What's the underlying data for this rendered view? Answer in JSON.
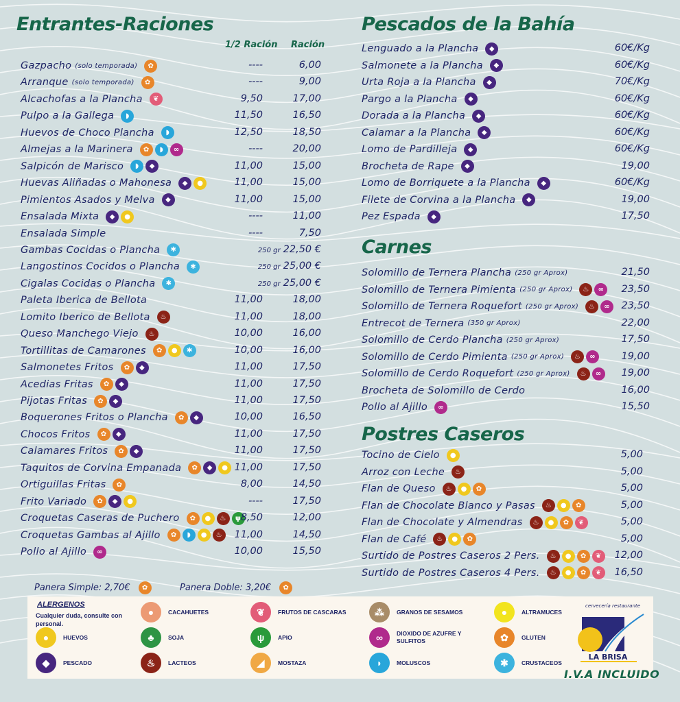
{
  "colors": {
    "text": "#1f2566",
    "title": "#17664a",
    "background": "#d3dfe0"
  },
  "allergen_icons": {
    "gluten": {
      "color": "#e8862a",
      "glyph": "✿",
      "label": "GLUTEN"
    },
    "pescado": {
      "color": "#47267f",
      "glyph": "◆",
      "label": "PESCADO"
    },
    "moluscos": {
      "color": "#28a6da",
      "glyph": "◗",
      "label": "MOLUSCOS"
    },
    "crustaceos": {
      "color": "#3cb3de",
      "glyph": "✱",
      "label": "CRUSTACEOS"
    },
    "sulfitos": {
      "color": "#b02a8c",
      "glyph": "∞",
      "label": "DIOXIDO DE AZUFRE Y SULFITOS"
    },
    "huevos": {
      "color": "#f0c81e",
      "glyph": "●",
      "label": "HUEVOS"
    },
    "lacteos": {
      "color": "#8b2317",
      "glyph": "♨",
      "label": "LACTEOS"
    },
    "frutos": {
      "color": "#e25c78",
      "glyph": "❦",
      "label": "FRUTOS DE CASCARAS"
    },
    "apio": {
      "color": "#2a9a3a",
      "glyph": "ψ",
      "label": "APIO"
    },
    "cacahuetes": {
      "color": "#ec9a74",
      "glyph": "●",
      "label": "CACAHUETES"
    },
    "soja": {
      "color": "#2e9444",
      "glyph": "♣",
      "label": "SOJA"
    },
    "mostaza": {
      "color": "#f0a844",
      "glyph": "◢",
      "label": "MOSTAZA"
    },
    "sesamo": {
      "color": "#a88c68",
      "glyph": "⁂",
      "label": "GRANOS DE SESAMOS"
    },
    "altramuces": {
      "color": "#f2e41e",
      "glyph": "●",
      "label": "ALTRAMUCES"
    }
  },
  "entrantes": {
    "title": "Entrantes-Raciones",
    "col_half": "1/2 Ración",
    "col_full": "Ración",
    "items": [
      {
        "name": "Gazpacho",
        "note": "(solo temporada)",
        "icons": [
          "gluten"
        ],
        "half": "----",
        "price": "6,00"
      },
      {
        "name": "Arranque",
        "note": "(solo temporada)",
        "icons": [
          "gluten"
        ],
        "half": "----",
        "price": "9,00"
      },
      {
        "name": "Alcachofas a la Plancha",
        "icons": [
          "frutos"
        ],
        "half": "9,50",
        "price": "17,00"
      },
      {
        "name": "Pulpo a la Gallega",
        "icons": [
          "moluscos"
        ],
        "half": "11,50",
        "price": "16,50"
      },
      {
        "name": "Huevos de Choco Plancha",
        "icons": [
          "moluscos"
        ],
        "half": "12,50",
        "price": "18,50"
      },
      {
        "name": "Almejas a la Marinera",
        "icons": [
          "gluten",
          "moluscos",
          "sulfitos"
        ],
        "half": "----",
        "price": "20,00"
      },
      {
        "name": "Salpicón de Marisco",
        "icons": [
          "moluscos",
          "pescado"
        ],
        "half": "11,00",
        "price": "15,00"
      },
      {
        "name": "Huevas Aliñadas o Mahonesa",
        "icons": [
          "pescado",
          "huevos"
        ],
        "half": "11,00",
        "price": "15,00"
      },
      {
        "name": "Pimientos Asados y Melva",
        "icons": [
          "pescado"
        ],
        "half": "11,00",
        "price": "15,00"
      },
      {
        "name": "Ensalada Mixta",
        "icons": [
          "pescado",
          "huevos"
        ],
        "half": "----",
        "price": "11,00"
      },
      {
        "name": "Ensalada Simple",
        "icons": [],
        "half": "----",
        "price": "7,50"
      },
      {
        "name": "Gambas Cocidas o Plancha",
        "icons": [
          "crustaceos"
        ],
        "weight": "250 gr",
        "price": "22,50 €"
      },
      {
        "name": "Langostinos Cocidos o Plancha",
        "icons": [
          "crustaceos"
        ],
        "weight": "250 gr",
        "price": "25,00 €"
      },
      {
        "name": "Cigalas Cocidas o Plancha",
        "icons": [
          "crustaceos"
        ],
        "weight": "250 gr",
        "price": "25,00 €"
      },
      {
        "name": "Paleta Iberica de Bellota",
        "icons": [],
        "half": "11,00",
        "price": "18,00"
      },
      {
        "name": "Lomito Iberico de Bellota",
        "icons": [
          "lacteos"
        ],
        "half": "11,00",
        "price": "18,00"
      },
      {
        "name": "Queso Manchego Viejo",
        "icons": [
          "lacteos"
        ],
        "half": "10,00",
        "price": "16,00"
      },
      {
        "name": "Tortillitas de Camarones",
        "icons": [
          "gluten",
          "huevos",
          "crustaceos"
        ],
        "half": "10,00",
        "price": "16,00"
      },
      {
        "name": "Salmonetes Fritos",
        "icons": [
          "gluten",
          "pescado"
        ],
        "half": "11,00",
        "price": "17,50"
      },
      {
        "name": "Acedias Fritas",
        "icons": [
          "gluten",
          "pescado"
        ],
        "half": "11,00",
        "price": "17,50"
      },
      {
        "name": "Pijotas Fritas",
        "icons": [
          "gluten",
          "pescado"
        ],
        "half": "11,00",
        "price": "17,50"
      },
      {
        "name": "Boquerones Fritos o Plancha",
        "icons": [
          "gluten",
          "pescado"
        ],
        "half": "10,00",
        "price": "16,50"
      },
      {
        "name": "Chocos Fritos",
        "icons": [
          "gluten",
          "pescado"
        ],
        "half": "11,00",
        "price": "17,50"
      },
      {
        "name": "Calamares Fritos",
        "icons": [
          "gluten",
          "pescado"
        ],
        "half": "11,00",
        "price": "17,50"
      },
      {
        "name": "Taquitos de Corvina Empanada",
        "icons": [
          "gluten",
          "pescado",
          "huevos"
        ],
        "half": "11,00",
        "price": "17,50"
      },
      {
        "name": "Ortiguillas Fritas",
        "icons": [
          "gluten"
        ],
        "half": "8,00",
        "price": "14,50"
      },
      {
        "name": "Frito Variado",
        "icons": [
          "gluten",
          "pescado",
          "huevos"
        ],
        "half": "----",
        "price": "17,50"
      },
      {
        "name": "Croquetas Caseras de Puchero",
        "icons": [
          "gluten",
          "huevos",
          "lacteos",
          "apio"
        ],
        "half": "8,50",
        "price": "12,00"
      },
      {
        "name": "Croquetas Gambas al Ajillo",
        "icons": [
          "gluten",
          "moluscos",
          "huevos",
          "lacteos"
        ],
        "half": "11,00",
        "price": "14,50"
      },
      {
        "name": "Pollo al Ajillo",
        "icons": [
          "sulfitos"
        ],
        "half": "10,00",
        "price": "15,50"
      }
    ]
  },
  "pescados": {
    "title": "Pescados de la Bahía",
    "items": [
      {
        "name": "Lenguado a la Plancha",
        "icons": [
          "pescado"
        ],
        "price": "60€/Kg"
      },
      {
        "name": "Salmonete a la Plancha",
        "icons": [
          "pescado"
        ],
        "price": "60€/Kg"
      },
      {
        "name": "Urta Roja a la Plancha",
        "icons": [
          "pescado"
        ],
        "price": "70€/Kg"
      },
      {
        "name": "Pargo a la Plancha",
        "icons": [
          "pescado"
        ],
        "price": "60€/Kg"
      },
      {
        "name": "Dorada a la Plancha",
        "icons": [
          "pescado"
        ],
        "price": "60€/Kg"
      },
      {
        "name": "Calamar a la Plancha",
        "icons": [
          "pescado"
        ],
        "price": "60€/Kg"
      },
      {
        "name": "Lomo de Pardilleja",
        "icons": [
          "pescado"
        ],
        "price": "60€/Kg"
      },
      {
        "name": "Brocheta de Rape",
        "icons": [
          "pescado"
        ],
        "price": "19,00"
      },
      {
        "name": "Lomo de Borriquete a la Plancha",
        "icons": [
          "pescado"
        ],
        "price": "60€/Kg"
      },
      {
        "name": "Filete de Corvina a la Plancha",
        "icons": [
          "pescado"
        ],
        "price": "19,00"
      },
      {
        "name": "Pez Espada",
        "icons": [
          "pescado"
        ],
        "price": "17,50"
      }
    ]
  },
  "carnes": {
    "title": "Carnes",
    "items": [
      {
        "name": "Solomillo de Ternera Plancha",
        "note": "(250 gr Aprox)",
        "icons": [],
        "price": "21,50"
      },
      {
        "name": "Solomillo de Ternera Pimienta",
        "note": "(250 gr Aprox)",
        "icons": [
          "lacteos",
          "sulfitos"
        ],
        "price": "23,50"
      },
      {
        "name": "Solomillo de Ternera Roquefort",
        "note": "(250 gr Aprox)",
        "icons": [
          "lacteos",
          "sulfitos"
        ],
        "price": "23,50"
      },
      {
        "name": "Entrecot de Ternera",
        "note": "(350 gr Aprox)",
        "icons": [],
        "price": "22,00"
      },
      {
        "name": "Solomillo de Cerdo Plancha",
        "note": "(250 gr Aprox)",
        "icons": [],
        "price": "17,50"
      },
      {
        "name": "Solomillo de Cerdo Pimienta",
        "note": "(250 gr Aprox)",
        "icons": [
          "lacteos",
          "sulfitos"
        ],
        "price": "19,00"
      },
      {
        "name": "Solomillo de Cerdo Roquefort",
        "note": "(250 gr Aprox)",
        "icons": [
          "lacteos",
          "sulfitos"
        ],
        "price": "19,00"
      },
      {
        "name": "Brocheta de Solomillo de Cerdo",
        "icons": [],
        "price": "16,00"
      },
      {
        "name": "Pollo al Ajillo",
        "icons": [
          "sulfitos"
        ],
        "price": "15,50"
      }
    ]
  },
  "postres": {
    "title": "Postres Caseros",
    "items": [
      {
        "name": "Tocino de Cielo",
        "icons": [
          "huevos"
        ],
        "price": "5,00"
      },
      {
        "name": "Arroz con Leche",
        "icons": [
          "lacteos"
        ],
        "price": "5,00"
      },
      {
        "name": "Flan de Queso",
        "icons": [
          "lacteos",
          "huevos",
          "gluten"
        ],
        "price": "5,00"
      },
      {
        "name": "Flan de Chocolate Blanco y Pasas",
        "icons": [
          "lacteos",
          "huevos",
          "gluten"
        ],
        "price": "5,00"
      },
      {
        "name": "Flan de Chocolate y Almendras",
        "icons": [
          "lacteos",
          "huevos",
          "gluten",
          "frutos"
        ],
        "price": "5,00"
      },
      {
        "name": "Flan de Café",
        "icons": [
          "lacteos",
          "huevos",
          "gluten"
        ],
        "price": "5,00"
      },
      {
        "name": "Surtido de Postres Caseros 2 Pers.",
        "icons": [
          "lacteos",
          "huevos",
          "gluten",
          "frutos"
        ],
        "price": "12,00"
      },
      {
        "name": "Surtido de Postres Caseros 4 Pers.",
        "icons": [
          "lacteos",
          "huevos",
          "gluten",
          "frutos"
        ],
        "price": "16,50"
      }
    ]
  },
  "panera": {
    "simple": "Panera Simple: 2,70€",
    "doble": "Panera Doble: 3,20€",
    "icon": "gluten"
  },
  "legend": {
    "title": "ALERGENOS",
    "subtitle": "Cualquier duda, consulte con personal.",
    "columns": [
      [
        "huevos",
        "pescado"
      ],
      [
        "cacahuetes",
        "soja",
        "lacteos"
      ],
      [
        "frutos",
        "apio",
        "mostaza"
      ],
      [
        "sesamo",
        "sulfitos",
        "moluscos"
      ],
      [
        "altramuces",
        "gluten",
        "crustaceos"
      ]
    ]
  },
  "logo": {
    "tagline": "cervecería restaurante",
    "name": "LA BRISA"
  },
  "iva": "I.V.A INCLUIDO"
}
